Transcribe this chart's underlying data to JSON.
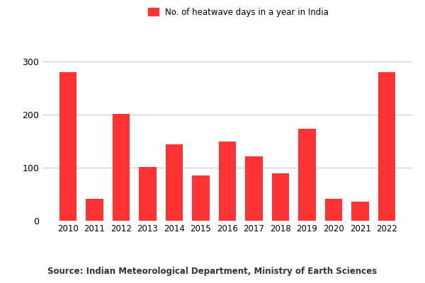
{
  "years": [
    "2010",
    "2011",
    "2012",
    "2013",
    "2014",
    "2015",
    "2016",
    "2017",
    "2018",
    "2019",
    "2020",
    "2021",
    "2022"
  ],
  "values": [
    280,
    42,
    202,
    101,
    144,
    85,
    150,
    122,
    90,
    173,
    42,
    36,
    280
  ],
  "bar_color": "#ff3333",
  "legend_label": "No. of heatwave days in a year in India",
  "legend_marker_color": "#ff3333",
  "yticks": [
    0,
    100,
    200,
    300
  ],
  "ylim": [
    0,
    320
  ],
  "source_text": "Source: Indian Meteorological Department, Ministry of Earth Sciences",
  "background_color": "#ffffff",
  "grid_color": "#cccccc",
  "bar_width": 0.65
}
